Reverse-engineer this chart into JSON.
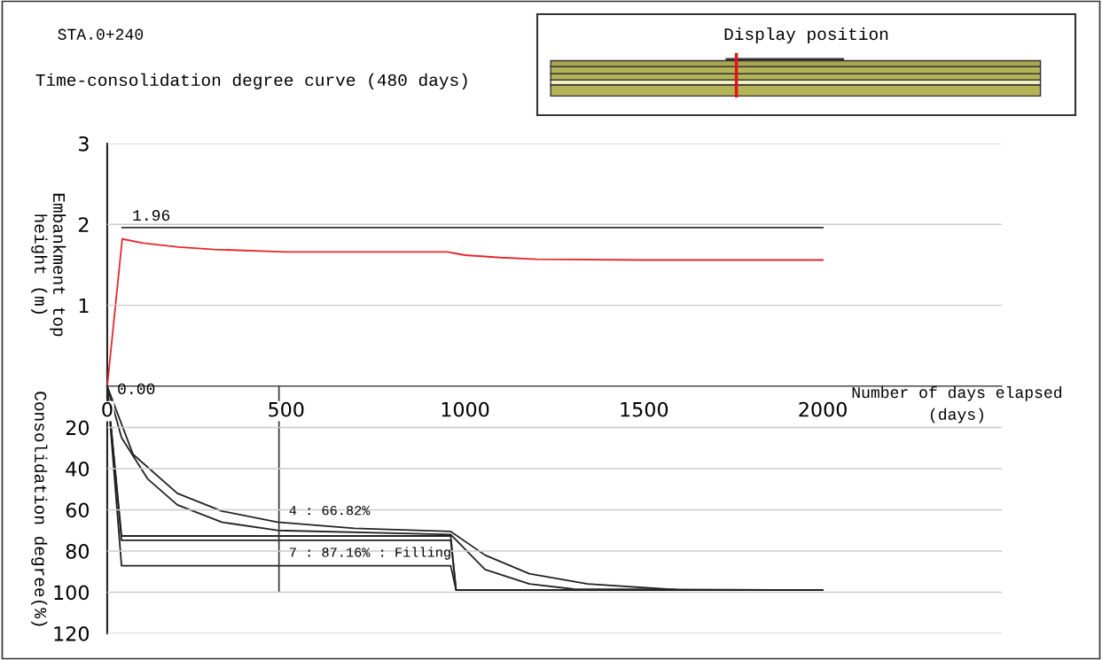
{
  "chart_data": [
    {
      "type": "line",
      "title": "STA.0+240",
      "subtitle": "Time-consolidation degree curve (480 days)",
      "ylabel": "Embankment top\nheight (m)",
      "annotations": [
        "Display position"
      ],
      "xlim": [
        0,
        2500
      ],
      "xticks": [
        0,
        500,
        1000,
        1500,
        2000
      ],
      "ylim": [
        0,
        3
      ],
      "yticks": [
        1,
        2,
        3
      ],
      "tick_labels": "y",
      "grid": "y",
      "series": [
        {
          "color": "#333333",
          "x": [
            42,
            2000
          ],
          "values": [
            1.96,
            1.96
          ],
          "value_labels": [
            "1.96",
            null
          ]
        },
        {
          "color": "#e8262a",
          "x": [
            0,
            42,
            100,
            200,
            300,
            500,
            950,
            1000,
            1100,
            1200,
            1500,
            2000
          ],
          "values": [
            0,
            1.82,
            1.77,
            1.72,
            1.69,
            1.66,
            1.66,
            1.62,
            1.59,
            1.57,
            1.56,
            1.56
          ]
        }
      ]
    },
    {
      "type": "line",
      "xlabel": "Number of days elapsed\n(days)",
      "ylabel": "Consolidation degree(%)",
      "xlim": [
        0,
        2500
      ],
      "xticks": [
        0,
        500,
        1000,
        1500,
        2000
      ],
      "ylim": [
        120,
        0
      ],
      "yticks": [
        20,
        40,
        60,
        80,
        100,
        120
      ],
      "grid": "y",
      "ref_lines": [
        {
          "axis": "x",
          "value": 480,
          "color": "#333333"
        }
      ],
      "annotations": [
        {
          "text": "4 : 66.82%",
          "x": 480,
          "y": 66.82
        },
        {
          "text": "7 : 87.16% : Filling",
          "x": 480,
          "y": 87.16
        }
      ],
      "series": [
        {
          "color": "#222222",
          "x": [
            0,
            40,
            960,
            975,
            2000
          ],
          "values": [
            0,
            87.16,
            87.16,
            99,
            99
          ],
          "value_labels": [
            "0.00",
            null,
            null,
            null,
            null
          ]
        },
        {
          "color": "#222222",
          "x": [
            0,
            40,
            960,
            975,
            2000
          ],
          "values": [
            0,
            74.8,
            74.8,
            99,
            99
          ]
        },
        {
          "color": "#222222",
          "x": [
            0,
            40,
            960,
            975,
            2000
          ],
          "values": [
            0,
            72.7,
            72.7,
            99,
            99
          ]
        },
        {
          "color": "#222222",
          "x": [
            0,
            40,
            113,
            196,
            320,
            476,
            960,
            1056,
            1180,
            1304,
            2000
          ],
          "values": [
            0,
            25,
            45,
            57.6,
            66,
            70,
            72,
            89,
            96,
            98.5,
            99
          ]
        },
        {
          "color": "#222222",
          "x": [
            0,
            72,
            196,
            320,
            476,
            691,
            960,
            1056,
            1180,
            1343,
            1608
          ],
          "values": [
            0,
            33,
            52,
            60.6,
            66,
            69,
            70.5,
            82,
            91,
            96,
            99
          ]
        }
      ]
    }
  ]
}
